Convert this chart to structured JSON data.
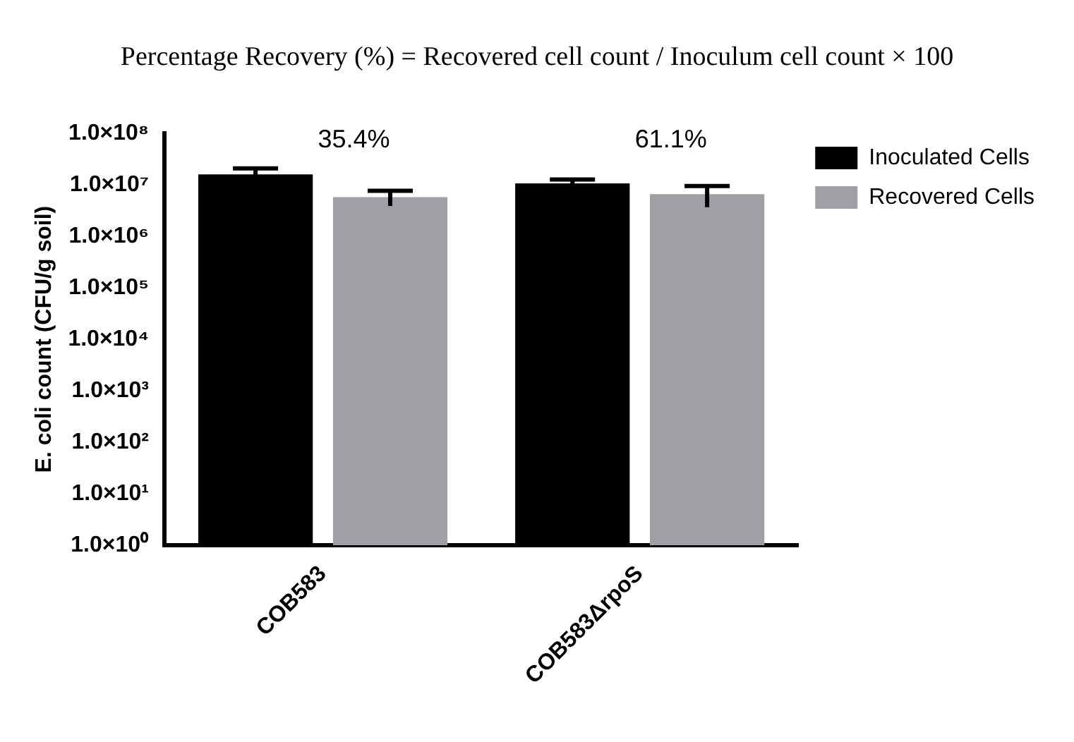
{
  "chart_data": {
    "type": "bar",
    "title": "Percentage Recovery (%) = Recovered cell count / Inoculum cell count × 100",
    "ylabel": "E. coli count (CFU/g soil)",
    "categories": [
      "COB583",
      "COB583ΔrpoS"
    ],
    "series": [
      {
        "name": "Inoculated Cells",
        "color": "#000000",
        "values": [
          16000000,
          10700000
        ],
        "errors": [
          5000000,
          2000000
        ]
      },
      {
        "name": "Recovered Cells",
        "color": "#a0a0a4",
        "values": [
          5800000,
          6600000
        ],
        "errors": [
          1900000,
          2900000
        ]
      }
    ],
    "log": true,
    "ylim": [
      1,
      100000000
    ],
    "yticks": [
      {
        "value": 1,
        "label": "1.0×10⁰"
      },
      {
        "value": 10,
        "label": "1.0×10¹"
      },
      {
        "value": 100,
        "label": "1.0×10²"
      },
      {
        "value": 1000,
        "label": "1.0×10³"
      },
      {
        "value": 10000,
        "label": "1.0×10⁴"
      },
      {
        "value": 100000,
        "label": "1.0×10⁵"
      },
      {
        "value": 1000000,
        "label": "1.0×10⁶"
      },
      {
        "value": 10000000,
        "label": "1.0×10⁷"
      },
      {
        "value": 100000000,
        "label": "1.0×10⁸"
      }
    ],
    "annotations": [
      "35.4%",
      "61.1%"
    ],
    "grid": false,
    "legend": "top right"
  }
}
